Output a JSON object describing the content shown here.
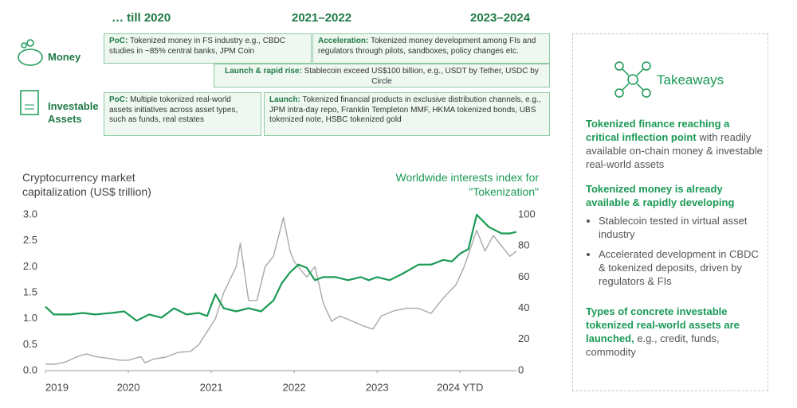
{
  "timeline": {
    "periods": [
      "… till 2020",
      "2021–2022",
      "2023–2024"
    ],
    "rows": [
      "Money",
      "Investable Assets"
    ],
    "boxes": [
      {
        "lead": "PoC:",
        "text": "Tokenized money in FS industry e.g., CBDC studies in ~85% central banks, JPM Coin"
      },
      {
        "lead": "Acceleration:",
        "text": "Tokenized money development among FIs and regulators through pilots, sandboxes, policy changes etc."
      },
      {
        "lead": "Launch & rapid rise:",
        "text": "Stablecoin exceed US$100 billion, e.g., USDT by Tether, USDC by Circle"
      },
      {
        "lead": "PoC:",
        "text": "Multiple tokenized real-world assets initiatives across asset types, such as funds, real estates"
      },
      {
        "lead": "Launch:",
        "text": "Tokenized financial products in exclusive distribution channels, e.g., JPM intra-day repo, Franklin Templeton MMF, HKMA tokenized bonds, UBS tokenized note, HSBC tokenized gold"
      }
    ]
  },
  "takeaways": {
    "title": "Takeaways",
    "items": [
      {
        "bold": "Tokenized finance reaching a critical inflection point",
        "text": "with readily available on-chain money & investable real-world assets"
      },
      {
        "bold": "Tokenized money is already available & rapidly developing",
        "bullets": [
          "Stablecoin tested in virtual asset industry",
          "Accelerated development in CBDC & tokenized deposits, driven by regulators & FIs"
        ]
      },
      {
        "bold": "Types of concrete investable tokenized real-world assets are launched,",
        "text": "e.g., credit, funds, commodity"
      }
    ]
  },
  "chart_data": {
    "type": "line",
    "y_label": "Cryptocurrency market capitalization (US$ trillion)",
    "y2_label": "Worldwide interests index for \"Tokenization\"",
    "xlim": [
      2019,
      2024.68
    ],
    "xticks": [
      2019,
      2020,
      2021,
      2022,
      2023,
      {
        "value": 2024,
        "label": "2024 YTD"
      }
    ],
    "ylim": [
      0,
      3
    ],
    "yticks": [
      {
        "value": 0,
        "label": "0.0"
      },
      0.5,
      {
        "value": 1,
        "label": "1.0"
      },
      1.5,
      {
        "value": 2,
        "label": "2.0"
      },
      2.5,
      {
        "value": 3,
        "label": "3.0"
      }
    ],
    "y2lim": [
      0,
      100
    ],
    "y2ticks": [
      0,
      20,
      40,
      60,
      80,
      100
    ],
    "series": [
      {
        "color": "#a8a8a8",
        "axis": "y",
        "x": [
          2019.0,
          2019.1,
          2019.25,
          2019.4,
          2019.5,
          2019.6,
          2019.75,
          2019.9,
          2020.0,
          2020.15,
          2020.2,
          2020.3,
          2020.45,
          2020.6,
          2020.75,
          2020.85,
          2020.95,
          2021.05,
          2021.15,
          2021.3,
          2021.35,
          2021.45,
          2021.55,
          2021.65,
          2021.75,
          2021.87,
          2021.95,
          2022.0,
          2022.15,
          2022.25,
          2022.35,
          2022.45,
          2022.55,
          2022.7,
          2022.85,
          2022.95,
          2023.05,
          2023.2,
          2023.35,
          2023.5,
          2023.65,
          2023.8,
          2023.95,
          2024.05,
          2024.2,
          2024.3,
          2024.4,
          2024.5,
          2024.6,
          2024.68
        ],
        "values": [
          0.13,
          0.12,
          0.17,
          0.28,
          0.32,
          0.27,
          0.24,
          0.2,
          0.2,
          0.27,
          0.15,
          0.22,
          0.26,
          0.35,
          0.37,
          0.5,
          0.75,
          1.0,
          1.5,
          2.0,
          2.45,
          1.35,
          1.35,
          2.0,
          2.2,
          2.95,
          2.3,
          2.1,
          1.8,
          2.0,
          1.3,
          0.95,
          1.05,
          0.95,
          0.85,
          0.8,
          1.05,
          1.15,
          1.2,
          1.2,
          1.1,
          1.4,
          1.65,
          2.0,
          2.7,
          2.3,
          2.6,
          2.4,
          2.2,
          2.3
        ]
      },
      {
        "color": "#1a9a55",
        "axis": "y2",
        "x": [
          2019.0,
          2019.1,
          2019.3,
          2019.45,
          2019.6,
          2019.8,
          2019.95,
          2020.1,
          2020.25,
          2020.4,
          2020.55,
          2020.7,
          2020.85,
          2020.95,
          2021.05,
          2021.15,
          2021.3,
          2021.45,
          2021.6,
          2021.75,
          2021.85,
          2021.95,
          2022.05,
          2022.15,
          2022.25,
          2022.35,
          2022.5,
          2022.65,
          2022.8,
          2022.9,
          2023.0,
          2023.15,
          2023.3,
          2023.5,
          2023.65,
          2023.8,
          2023.9,
          2024.0,
          2024.1,
          2024.2,
          2024.35,
          2024.5,
          2024.6,
          2024.68
        ],
        "values": [
          41,
          36,
          36,
          37,
          36,
          37,
          38,
          32,
          36,
          34,
          40,
          36,
          37,
          35,
          49,
          40,
          38,
          40,
          38,
          45,
          56,
          63,
          68,
          66,
          58,
          60,
          60,
          58,
          60,
          58,
          60,
          58,
          62,
          68,
          68,
          71,
          70,
          75,
          78,
          100,
          92,
          88,
          88,
          89
        ]
      }
    ]
  }
}
